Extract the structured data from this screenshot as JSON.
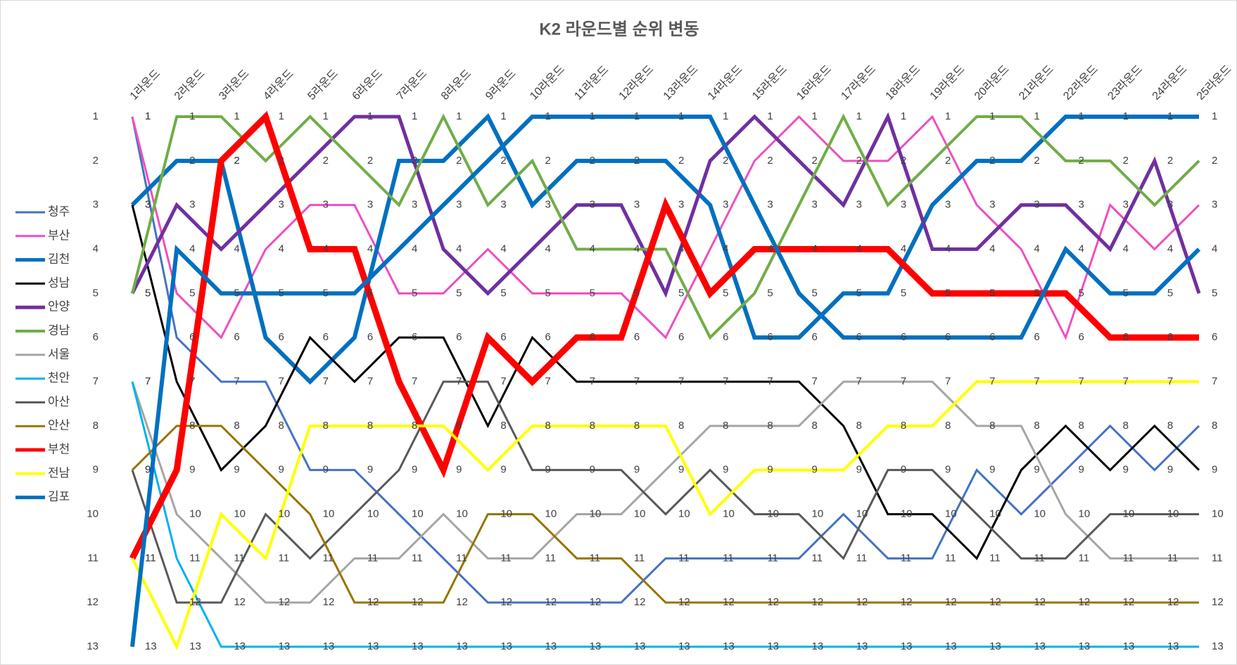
{
  "chart_data": {
    "type": "line",
    "title": "K2 라운드별 순위 변동",
    "categories": [
      "1라운드",
      "2라운드",
      "3라운드",
      "4라운드",
      "5라운드",
      "6라운드",
      "7라운드",
      "8라운드",
      "9라운드",
      "10라운드",
      "11라운드",
      "12라운드",
      "13라운드",
      "14라운드",
      "15라운드",
      "16라운드",
      "17라운드",
      "18라운드",
      "19라운드",
      "20라운드",
      "21라운드",
      "22라운드",
      "23라운드",
      "24라운드",
      "25라운드"
    ],
    "ylim": [
      1,
      13
    ],
    "y_inverted": true,
    "yticks": [
      1,
      2,
      3,
      4,
      5,
      6,
      7,
      8,
      9,
      10,
      11,
      12,
      13
    ],
    "legend": "left",
    "data_labels": true,
    "series": [
      {
        "name": "청주",
        "color": "#4472c4",
        "width": 3,
        "values": [
          1,
          6,
          7,
          7,
          9,
          9,
          10,
          11,
          12,
          12,
          12,
          12,
          11,
          11,
          11,
          11,
          10,
          11,
          11,
          9,
          10,
          9,
          8,
          9,
          8
        ]
      },
      {
        "name": "부산",
        "color": "#ee4fc0",
        "width": 3,
        "values": [
          1,
          5,
          6,
          4,
          3,
          3,
          5,
          5,
          4,
          5,
          5,
          5,
          6,
          4,
          2,
          1,
          2,
          2,
          1,
          3,
          4,
          6,
          3,
          4,
          3
        ]
      },
      {
        "name": "김천",
        "color": "#0070c0",
        "width": 6,
        "values": [
          3,
          2,
          2,
          6,
          7,
          6,
          2,
          2,
          1,
          3,
          2,
          2,
          2,
          3,
          6,
          6,
          5,
          5,
          3,
          2,
          2,
          1,
          1,
          1,
          1
        ]
      },
      {
        "name": "성남",
        "color": "#000000",
        "width": 3,
        "values": [
          3,
          7,
          9,
          8,
          6,
          7,
          6,
          6,
          8,
          6,
          7,
          7,
          7,
          7,
          7,
          7,
          8,
          10,
          10,
          11,
          9,
          8,
          9,
          8,
          9
        ]
      },
      {
        "name": "안양",
        "color": "#7030a0",
        "width": 5,
        "values": [
          5,
          3,
          4,
          3,
          2,
          1,
          1,
          4,
          5,
          4,
          3,
          3,
          5,
          2,
          1,
          2,
          3,
          1,
          4,
          4,
          3,
          3,
          4,
          2,
          5
        ]
      },
      {
        "name": "경남",
        "color": "#70ad47",
        "width": 4,
        "values": [
          5,
          1,
          1,
          2,
          1,
          2,
          3,
          1,
          3,
          2,
          4,
          4,
          4,
          6,
          5,
          3,
          1,
          3,
          2,
          1,
          1,
          2,
          2,
          3,
          2
        ]
      },
      {
        "name": "서울",
        "color": "#a5a5a5",
        "width": 3,
        "values": [
          7,
          10,
          11,
          12,
          12,
          11,
          11,
          10,
          11,
          11,
          10,
          10,
          9,
          8,
          8,
          8,
          7,
          7,
          7,
          8,
          8,
          10,
          11,
          11,
          11
        ]
      },
      {
        "name": "천안",
        "color": "#00b0f0",
        "width": 3,
        "values": [
          7,
          11,
          13,
          13,
          13,
          13,
          13,
          13,
          13,
          13,
          13,
          13,
          13,
          13,
          13,
          13,
          13,
          13,
          13,
          13,
          13,
          13,
          13,
          13,
          13
        ]
      },
      {
        "name": "아산",
        "color": "#595959",
        "width": 3,
        "values": [
          9,
          12,
          12,
          10,
          11,
          10,
          9,
          7,
          7,
          9,
          9,
          9,
          10,
          9,
          10,
          10,
          11,
          9,
          9,
          10,
          11,
          11,
          10,
          10,
          10
        ]
      },
      {
        "name": "안산",
        "color": "#997300",
        "width": 3,
        "values": [
          9,
          8,
          8,
          9,
          10,
          12,
          12,
          12,
          10,
          10,
          11,
          11,
          12,
          12,
          12,
          12,
          12,
          12,
          12,
          12,
          12,
          12,
          12,
          12,
          12
        ]
      },
      {
        "name": "부천",
        "color": "#ff0000",
        "width": 9,
        "values": [
          11,
          9,
          2,
          1,
          4,
          4,
          7,
          9,
          6,
          7,
          6,
          6,
          3,
          5,
          4,
          4,
          4,
          4,
          5,
          5,
          5,
          5,
          6,
          6,
          6
        ]
      },
      {
        "name": "전남",
        "color": "#ffff00",
        "width": 4,
        "values": [
          11,
          13,
          10,
          11,
          8,
          8,
          8,
          8,
          9,
          8,
          8,
          8,
          8,
          10,
          9,
          9,
          9,
          8,
          8,
          7,
          7,
          7,
          7,
          7,
          7
        ]
      },
      {
        "name": "김포",
        "color": "#0070c0",
        "width": 6,
        "values": [
          13,
          4,
          5,
          5,
          5,
          5,
          4,
          3,
          2,
          1,
          1,
          1,
          1,
          1,
          3,
          5,
          6,
          6,
          6,
          6,
          6,
          4,
          5,
          5,
          4
        ]
      }
    ]
  }
}
